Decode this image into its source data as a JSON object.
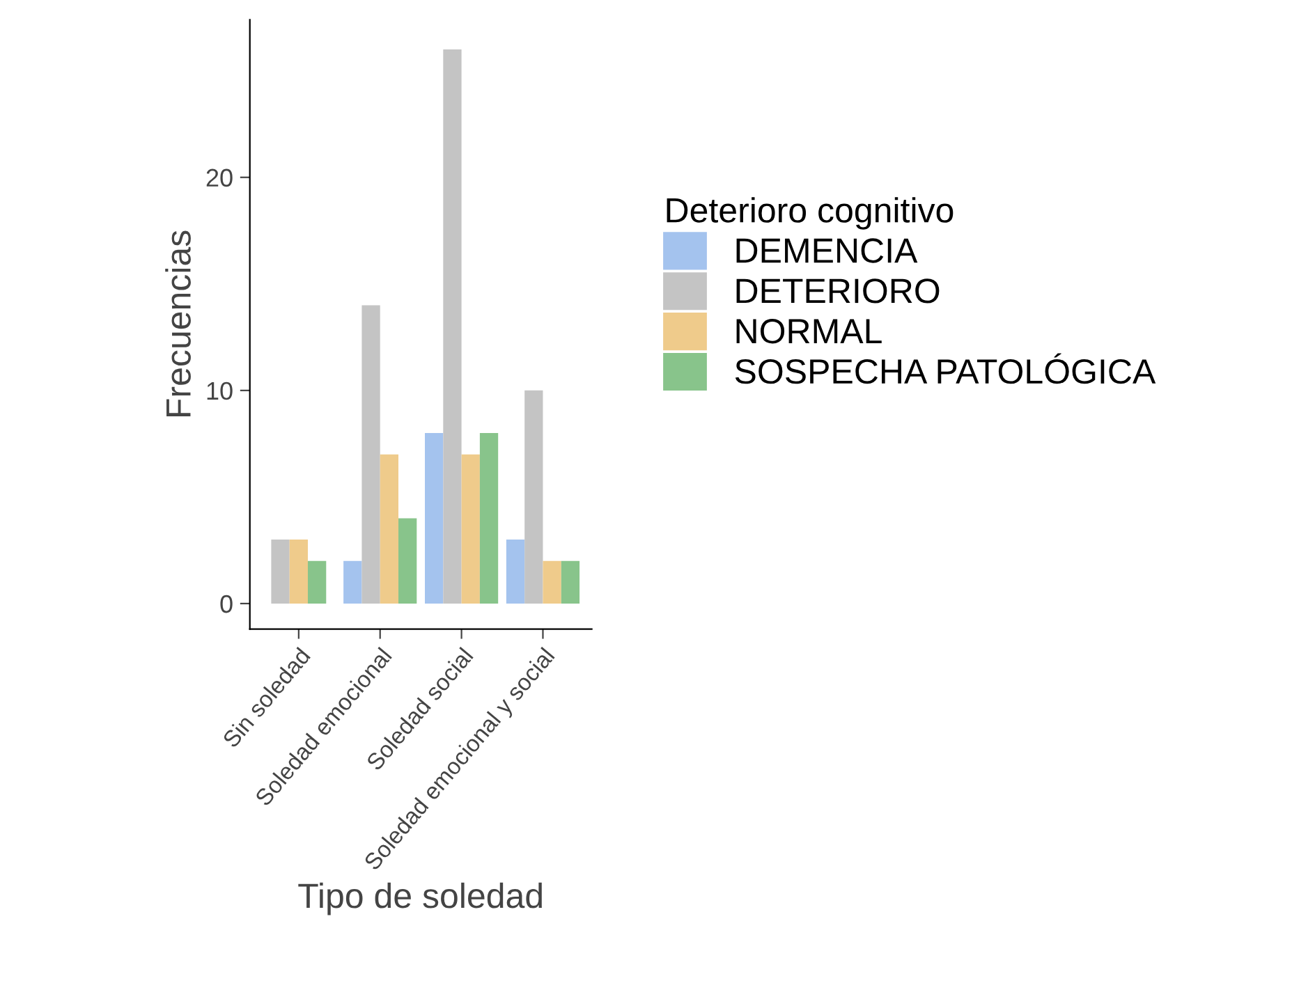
{
  "chart_data": {
    "type": "bar",
    "xlabel": "Tipo de soledad",
    "ylabel": "Frecuencias",
    "legend_title": "Deterioro cognitivo",
    "legend": "right",
    "categories": [
      "Sin soledad",
      "Soledad emocional",
      "Soledad social",
      "Soledad emocional y social"
    ],
    "series": [
      {
        "name": "DEMENCIA",
        "color": "#a4c3ee",
        "values": [
          null,
          2,
          8,
          3
        ]
      },
      {
        "name": "DETERIORO",
        "color": "#c4c4c4",
        "values": [
          3,
          14,
          26,
          10
        ]
      },
      {
        "name": "NORMAL",
        "color": "#efcb8b",
        "values": [
          3,
          7,
          7,
          2
        ]
      },
      {
        "name": "SOSPECHA PATOLÓGICA",
        "color": "#88c48b",
        "values": [
          2,
          4,
          8,
          2
        ]
      }
    ],
    "ylim": [
      -1.2,
      27.4
    ],
    "yticks": [
      0,
      10,
      20
    ],
    "grid": false
  }
}
